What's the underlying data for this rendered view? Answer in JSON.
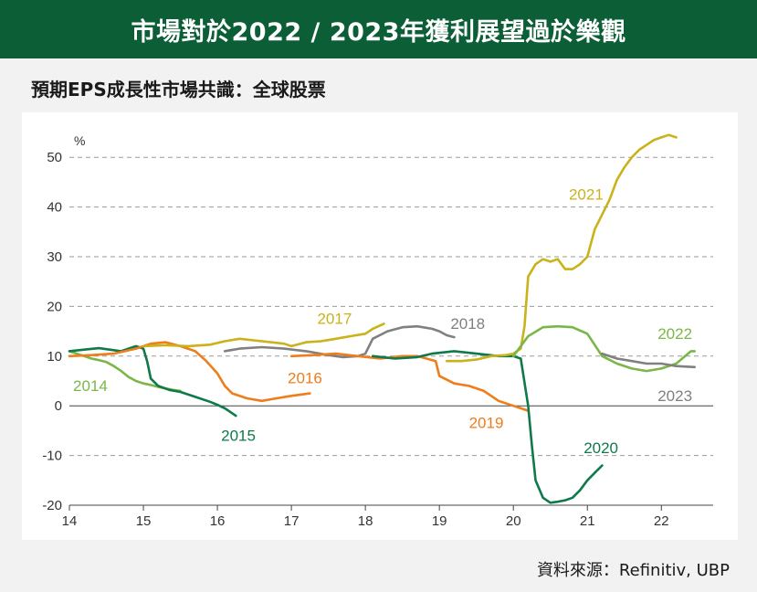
{
  "header": {
    "title": "市場對於2022 / 2023年獲利展望過於樂觀"
  },
  "subtitle": "預期EPS成長性市場共識：全球股票",
  "source": "資料來源：Refinitiv, UBP",
  "colors": {
    "banner": "#0b5e36",
    "2014": "#7ab648",
    "2015": "#0e7a4a",
    "2016": "#ee7d1b",
    "2017": "#c9b21a",
    "2018": "#808080",
    "2019": "#ee7d1b",
    "2020": "#0e7a4a",
    "2021": "#c9b21a",
    "2022": "#7ab648",
    "2023": "#808080"
  },
  "chart_data": {
    "type": "line",
    "title": "",
    "xlabel": "",
    "ylabel": "%",
    "xlim": [
      2014,
      2022.7
    ],
    "ylim": [
      -20,
      55
    ],
    "x_ticks": [
      2014,
      2015,
      2016,
      2017,
      2018,
      2019,
      2020,
      2021,
      2022
    ],
    "x_tick_labels": [
      "14",
      "15",
      "16",
      "17",
      "18",
      "19",
      "20",
      "21",
      "22"
    ],
    "y_ticks": [
      -20,
      -10,
      0,
      10,
      20,
      30,
      40,
      50
    ],
    "y_tick_labels": [
      "-20",
      "-10",
      "0",
      "10",
      "20",
      "30",
      "40",
      "50"
    ],
    "grid": "horizontal dashed",
    "series": [
      {
        "name": "2014",
        "color": "#7ab648",
        "x": [
          2014.0,
          2014.1,
          2014.2,
          2014.3,
          2014.4,
          2014.5,
          2014.6,
          2014.7,
          2014.8,
          2014.9,
          2015.0,
          2015.1,
          2015.2,
          2015.3,
          2015.4,
          2015.5
        ],
        "y": [
          11.0,
          10.5,
          10.0,
          9.5,
          9.2,
          8.8,
          8.0,
          7.0,
          5.8,
          5.0,
          4.5,
          4.2,
          3.8,
          3.5,
          3.2,
          3.0
        ]
      },
      {
        "name": "2015",
        "color": "#0e7a4a",
        "x": [
          2014.0,
          2014.2,
          2014.4,
          2014.6,
          2014.7,
          2014.8,
          2014.9,
          2015.0,
          2015.05,
          2015.1,
          2015.2,
          2015.35,
          2015.5,
          2015.7,
          2015.9,
          2016.0,
          2016.1,
          2016.25
        ],
        "y": [
          11.0,
          11.3,
          11.6,
          11.2,
          11.0,
          11.5,
          12.0,
          11.5,
          9.0,
          5.5,
          4.0,
          3.2,
          2.8,
          1.8,
          0.8,
          0.2,
          -0.5,
          -2.0
        ]
      },
      {
        "name": "2016",
        "color": "#ee7d1b",
        "x": [
          2014.0,
          2014.3,
          2014.6,
          2014.9,
          2015.1,
          2015.3,
          2015.5,
          2015.7,
          2015.85,
          2016.0,
          2016.1,
          2016.2,
          2016.4,
          2016.6,
          2016.8,
          2017.0,
          2017.25
        ],
        "y": [
          10.0,
          10.2,
          10.5,
          11.5,
          12.5,
          12.8,
          12.0,
          11.0,
          9.0,
          6.5,
          4.0,
          2.5,
          1.5,
          1.0,
          1.5,
          2.0,
          2.5
        ]
      },
      {
        "name": "2017",
        "color": "#c9b21a",
        "x": [
          2015.0,
          2015.3,
          2015.6,
          2015.9,
          2016.1,
          2016.3,
          2016.6,
          2016.9,
          2017.0,
          2017.2,
          2017.4,
          2017.6,
          2017.8,
          2018.0,
          2018.1,
          2018.25
        ],
        "y": [
          12.0,
          12.2,
          12.0,
          12.3,
          13.0,
          13.5,
          13.0,
          12.5,
          12.0,
          12.8,
          13.0,
          13.5,
          14.0,
          14.5,
          15.5,
          16.5
        ]
      },
      {
        "name": "2018",
        "color": "#808080",
        "x": [
          2016.1,
          2016.3,
          2016.6,
          2016.9,
          2017.2,
          2017.5,
          2017.7,
          2017.9,
          2018.0,
          2018.1,
          2018.3,
          2018.5,
          2018.7,
          2018.9,
          2019.0,
          2019.1,
          2019.2
        ],
        "y": [
          11.0,
          11.5,
          11.8,
          11.5,
          11.0,
          10.2,
          9.8,
          10.0,
          10.5,
          13.5,
          15.0,
          15.8,
          16.0,
          15.5,
          15.0,
          14.2,
          13.8
        ]
      },
      {
        "name": "2019",
        "color": "#ee7d1b",
        "x": [
          2017.0,
          2017.3,
          2017.6,
          2017.9,
          2018.2,
          2018.5,
          2018.7,
          2018.95,
          2019.0,
          2019.2,
          2019.4,
          2019.6,
          2019.7,
          2019.8,
          2020.0,
          2020.1,
          2020.2
        ],
        "y": [
          10.0,
          10.2,
          10.5,
          10.0,
          9.5,
          10.0,
          10.0,
          9.0,
          6.0,
          4.5,
          4.0,
          3.0,
          2.0,
          1.0,
          0.0,
          -0.5,
          -1.0
        ]
      },
      {
        "name": "2020",
        "color": "#0e7a4a",
        "x": [
          2018.1,
          2018.4,
          2018.7,
          2018.9,
          2019.2,
          2019.5,
          2019.8,
          2020.0,
          2020.1,
          2020.2,
          2020.25,
          2020.3,
          2020.4,
          2020.5,
          2020.6,
          2020.7,
          2020.8,
          2020.9,
          2021.0,
          2021.1,
          2021.2
        ],
        "y": [
          10.0,
          9.5,
          9.8,
          10.5,
          11.0,
          10.5,
          10.0,
          10.0,
          9.5,
          0.0,
          -8.0,
          -15.0,
          -18.5,
          -19.5,
          -19.3,
          -19.0,
          -18.5,
          -17.0,
          -15.0,
          -13.5,
          -12.0
        ]
      },
      {
        "name": "2021",
        "color": "#c9b21a",
        "x": [
          2019.1,
          2019.3,
          2019.5,
          2019.7,
          2019.9,
          2020.0,
          2020.1,
          2020.15,
          2020.2,
          2020.3,
          2020.4,
          2020.5,
          2020.6,
          2020.7,
          2020.8,
          2020.9,
          2021.0,
          2021.1,
          2021.2,
          2021.3,
          2021.4,
          2021.5,
          2021.6,
          2021.7,
          2021.8,
          2021.9,
          2022.0,
          2022.1,
          2022.2
        ],
        "y": [
          9.0,
          9.0,
          9.3,
          10.0,
          10.2,
          10.5,
          11.5,
          16.0,
          26.0,
          28.5,
          29.5,
          29.0,
          29.5,
          27.5,
          27.5,
          28.5,
          30.0,
          35.5,
          38.5,
          41.5,
          45.5,
          48.0,
          50.0,
          51.5,
          52.5,
          53.5,
          54.0,
          54.5,
          54.0
        ]
      },
      {
        "name": "2022",
        "color": "#7ab648",
        "x": [
          2020.0,
          2020.2,
          2020.4,
          2020.6,
          2020.8,
          2021.0,
          2021.2,
          2021.4,
          2021.6,
          2021.8,
          2022.0,
          2022.2,
          2022.4,
          2022.45
        ],
        "y": [
          10.0,
          14.0,
          15.8,
          16.0,
          15.8,
          14.5,
          10.0,
          8.5,
          7.5,
          7.0,
          7.5,
          8.5,
          11.0,
          11.0
        ]
      },
      {
        "name": "2023",
        "color": "#808080",
        "x": [
          2021.2,
          2021.4,
          2021.6,
          2021.8,
          2022.0,
          2022.2,
          2022.45
        ],
        "y": [
          10.5,
          9.5,
          9.0,
          8.5,
          8.5,
          8.0,
          7.8
        ]
      }
    ],
    "annotations": [
      {
        "series": "2014",
        "text": "2014",
        "x": 2014.05,
        "y": 3,
        "color": "#7ab648"
      },
      {
        "series": "2015",
        "text": "2015",
        "x": 2016.05,
        "y": -7,
        "color": "#0e7a4a"
      },
      {
        "series": "2016",
        "text": "2016",
        "x": 2016.95,
        "y": 4.5,
        "color": "#ee7d1b"
      },
      {
        "series": "2017",
        "text": "2017",
        "x": 2017.35,
        "y": 16.5,
        "color": "#c9b21a"
      },
      {
        "series": "2018",
        "text": "2018",
        "x": 2019.15,
        "y": 15.5,
        "color": "#808080"
      },
      {
        "series": "2019",
        "text": "2019",
        "x": 2019.4,
        "y": -4.5,
        "color": "#ee7d1b"
      },
      {
        "series": "2020",
        "text": "2020",
        "x": 2020.95,
        "y": -9.5,
        "color": "#0e7a4a"
      },
      {
        "series": "2021",
        "text": "2021",
        "x": 2020.75,
        "y": 41.5,
        "color": "#c9b21a"
      },
      {
        "series": "2022",
        "text": "2022",
        "x": 2021.95,
        "y": 13.5,
        "color": "#7ab648"
      },
      {
        "series": "2023",
        "text": "2023",
        "x": 2021.95,
        "y": 1.0,
        "color": "#808080"
      }
    ]
  }
}
